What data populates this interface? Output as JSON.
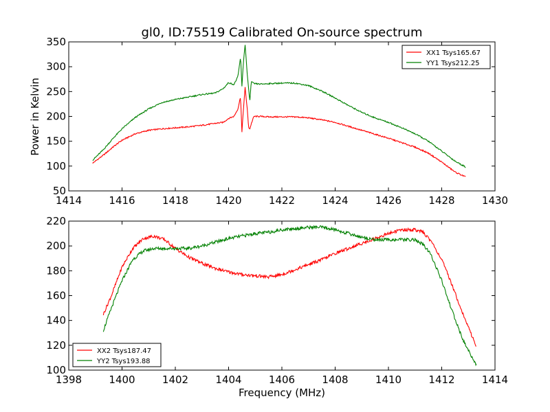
{
  "figure": {
    "title": "gl0, ID:75519 Calibrated On-source spectrum",
    "ylabel": "Power in Kelvin",
    "xlabel": "Frequency (MHz)"
  },
  "chart_data": [
    {
      "type": "line",
      "title": "gl0, ID:75519 Calibrated On-source spectrum",
      "xlabel": "",
      "ylabel": "Power in Kelvin",
      "xlim": [
        1414,
        1430
      ],
      "ylim": [
        50,
        350
      ],
      "xticks": [
        1414,
        1416,
        1418,
        1420,
        1422,
        1424,
        1426,
        1428,
        1430
      ],
      "yticks": [
        50,
        100,
        150,
        200,
        250,
        300,
        350
      ],
      "legend_position": "top-right",
      "series": [
        {
          "name": "XX1 Tsys165.67",
          "color": "#ff0000",
          "x": [
            1414.9,
            1415.3,
            1415.7,
            1416.0,
            1416.5,
            1417.0,
            1417.5,
            1418.0,
            1418.5,
            1419.0,
            1419.5,
            1419.8,
            1420.0,
            1420.2,
            1420.35,
            1420.45,
            1420.5,
            1420.55,
            1420.62,
            1420.7,
            1420.75,
            1420.8,
            1420.85,
            1420.95,
            1421.2,
            1421.5,
            1422.0,
            1422.5,
            1423.0,
            1423.5,
            1424.0,
            1424.5,
            1425.0,
            1425.5,
            1426.0,
            1426.5,
            1427.0,
            1427.5,
            1428.0,
            1428.5,
            1428.9
          ],
          "values": [
            106,
            122,
            140,
            152,
            165,
            172,
            175,
            177,
            179,
            182,
            186,
            188,
            196,
            200,
            215,
            240,
            168,
            210,
            258,
            215,
            178,
            175,
            185,
            200,
            200,
            199,
            199,
            199,
            197,
            193,
            188,
            180,
            172,
            164,
            156,
            147,
            138,
            126,
            108,
            88,
            78
          ]
        },
        {
          "name": "YY1 Tsys212.25",
          "color": "#008000",
          "x": [
            1414.9,
            1415.3,
            1415.7,
            1416.0,
            1416.5,
            1417.0,
            1417.5,
            1418.0,
            1418.5,
            1419.0,
            1419.5,
            1419.8,
            1420.0,
            1420.2,
            1420.35,
            1420.45,
            1420.5,
            1420.55,
            1420.62,
            1420.7,
            1420.75,
            1420.8,
            1420.85,
            1420.95,
            1421.2,
            1421.5,
            1422.0,
            1422.5,
            1423.0,
            1423.5,
            1424.0,
            1424.5,
            1425.0,
            1425.5,
            1426.0,
            1426.5,
            1427.0,
            1427.5,
            1428.0,
            1428.5,
            1428.9
          ],
          "values": [
            112,
            133,
            158,
            175,
            198,
            215,
            228,
            234,
            239,
            244,
            247,
            256,
            268,
            264,
            280,
            320,
            260,
            305,
            345,
            285,
            255,
            232,
            270,
            266,
            265,
            266,
            267,
            267,
            262,
            251,
            237,
            222,
            208,
            197,
            188,
            177,
            165,
            150,
            130,
            110,
            98
          ]
        }
      ]
    },
    {
      "type": "line",
      "title": "",
      "xlabel": "Frequency (MHz)",
      "ylabel": "",
      "xlim": [
        1398,
        1414
      ],
      "ylim": [
        100,
        220
      ],
      "xticks": [
        1398,
        1400,
        1402,
        1404,
        1406,
        1408,
        1410,
        1412,
        1414
      ],
      "yticks": [
        100,
        120,
        140,
        160,
        180,
        200,
        220
      ],
      "legend_position": "bottom-left",
      "series": [
        {
          "name": "XX2 Tsys187.47",
          "color": "#ff0000",
          "x": [
            1399.3,
            1399.6,
            1400.0,
            1400.4,
            1400.8,
            1401.2,
            1401.6,
            1402.0,
            1402.5,
            1403.0,
            1403.5,
            1404.0,
            1404.5,
            1405.0,
            1405.5,
            1406.0,
            1406.5,
            1407.0,
            1407.5,
            1408.0,
            1408.5,
            1409.0,
            1409.5,
            1410.0,
            1410.5,
            1411.0,
            1411.3,
            1411.6,
            1412.0,
            1412.4,
            1412.8,
            1413.3
          ],
          "values": [
            145,
            160,
            183,
            198,
            206,
            208,
            205,
            198,
            191,
            186,
            182,
            179,
            177,
            176,
            175,
            177,
            181,
            185,
            189,
            194,
            198,
            202,
            206,
            210,
            213,
            213,
            211,
            204,
            189,
            168,
            145,
            119
          ]
        },
        {
          "name": "YY2 Tsys193.88",
          "color": "#008000",
          "x": [
            1399.3,
            1399.6,
            1400.0,
            1400.4,
            1400.8,
            1401.2,
            1401.6,
            1402.0,
            1402.5,
            1403.0,
            1403.5,
            1404.0,
            1404.5,
            1405.0,
            1405.5,
            1406.0,
            1406.5,
            1407.0,
            1407.5,
            1408.0,
            1408.5,
            1409.0,
            1409.5,
            1410.0,
            1410.5,
            1411.0,
            1411.3,
            1411.6,
            1412.0,
            1412.4,
            1412.8,
            1413.3
          ],
          "values": [
            132,
            150,
            172,
            189,
            196,
            198,
            198,
            198,
            198,
            200,
            203,
            206,
            208,
            210,
            211,
            213,
            214,
            215,
            215,
            213,
            210,
            207,
            205,
            205,
            205,
            205,
            201,
            193,
            172,
            147,
            124,
            104
          ]
        }
      ]
    }
  ]
}
